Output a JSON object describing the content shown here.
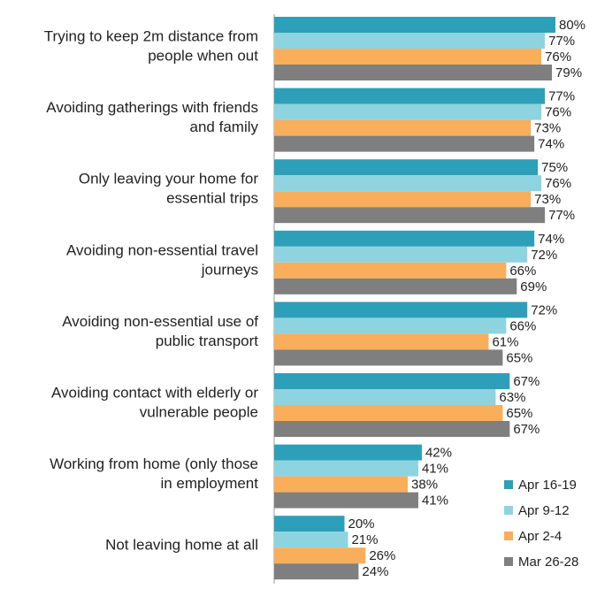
{
  "chart_data": {
    "type": "barh",
    "categories": [
      [
        "Trying to keep 2m distance from",
        "people when out"
      ],
      [
        "Avoiding gatherings with friends",
        "and family"
      ],
      [
        "Only leaving your home for",
        "essential trips"
      ],
      [
        "Avoiding non-essential travel",
        "journeys"
      ],
      [
        "Avoiding non-essential use of",
        "public transport"
      ],
      [
        "Avoiding contact with elderly or",
        "vulnerable people"
      ],
      [
        "Working from home (only those",
        "in employment"
      ],
      [
        "Not leaving home at all"
      ]
    ],
    "series": [
      {
        "name": "Apr 16-19",
        "color": "#2e9fb8",
        "values": [
          80,
          77,
          75,
          74,
          72,
          67,
          42,
          20
        ],
        "value_labels": [
          "80%",
          "77%",
          "75%",
          "74%",
          "72%",
          "67%",
          "42%",
          "20%"
        ]
      },
      {
        "name": "Apr 9-12",
        "color": "#8ed3e0",
        "values": [
          77,
          76,
          76,
          72,
          66,
          63,
          41,
          21
        ],
        "value_labels": [
          "77%",
          "76%",
          "76%",
          "72%",
          "66%",
          "63%",
          "41%",
          "21%"
        ]
      },
      {
        "name": "Apr 2-4",
        "color": "#f8ae5b",
        "values": [
          76,
          73,
          73,
          66,
          61,
          65,
          38,
          26
        ],
        "value_labels": [
          "76%",
          "73%",
          "73%",
          "66%",
          "61%",
          "65%",
          "38%",
          "26%"
        ]
      },
      {
        "name": "Mar 26-28",
        "color": "#7f7f7f",
        "values": [
          79,
          74,
          77,
          69,
          65,
          67,
          41,
          24
        ],
        "value_labels": [
          "79%",
          "74%",
          "77%",
          "69%",
          "65%",
          "67%",
          "41%",
          "24%"
        ]
      }
    ],
    "xlim": [
      0,
      100
    ],
    "legend": "lower right"
  }
}
